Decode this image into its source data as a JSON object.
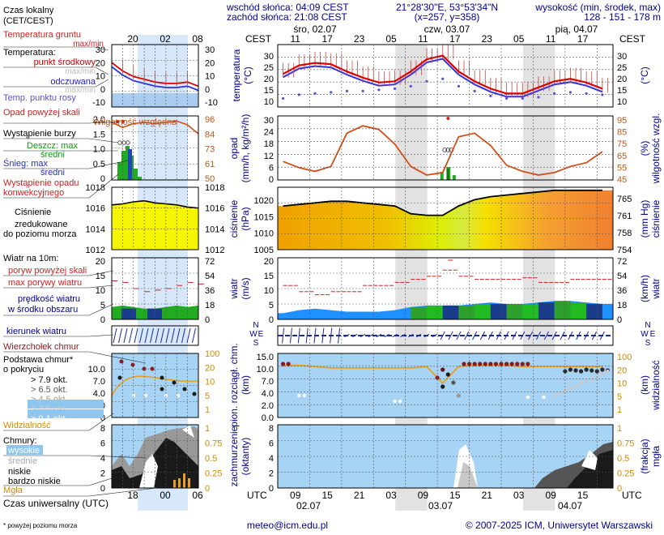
{
  "header": {
    "sunrise": "wschód słońca: 04:09 CEST",
    "sunset": "zachód słońca: 21:08 CEST",
    "coords": "21°28'30\"E, 53°53'34\"N",
    "grid": "(x=257, y=358)",
    "altitude_title": "wysokość (min, środek, max)",
    "altitude_values": "128 - 151 - 178 m",
    "tz": "CEST",
    "utc": "UTC",
    "days": [
      {
        "label": "śro, 02.07",
        "bottom": "02.07"
      },
      {
        "label": "czw, 03.07",
        "bottom": "03.07"
      },
      {
        "label": "pią, 04.07",
        "bottom": "04.07"
      }
    ],
    "hours_local": [
      "11",
      "17",
      "23",
      "05",
      "11",
      "17",
      "23",
      "05",
      "11",
      "17"
    ],
    "hours_utc": [
      "09",
      "15",
      "21",
      "03",
      "09",
      "15",
      "21",
      "03",
      "09",
      "15"
    ]
  },
  "legend": {
    "local_time": "Czas lokalny",
    "local_time_sub": "(CET/CEST)",
    "soil_temp": "Temperatura gruntu",
    "soil_temp_sub": "max/min",
    "temp": "Temperatura:",
    "temp_mid": "punkt środkowy",
    "temp_max_min": "max/min",
    "temp_felt": "odczuwana",
    "temp_felt_sub": "max/min",
    "dew_point": "Temp. punktu rosy",
    "precip_above": "Opad powyżej skali",
    "storm": "Wystąpienie burzy",
    "humidity": "Wilgotność względna",
    "rain": "Deszcz: max",
    "rain_mid": "średni",
    "snow": "Śnieg: max",
    "snow_mid": "średni",
    "conv": "Wystąpienie opadu",
    "conv2": "konwekcyjnego",
    "pressure": "Ciśnienie",
    "pressure2": "zredukowane",
    "pressure3": "do poziomu morza",
    "wind": "Wiatr na 10m:",
    "gust_above": "poryw powyżej skali",
    "gust_max": "max porywy wiatru",
    "wind_mean": "prędkość wiatru",
    "wind_mean2": "w środku obszaru",
    "wind_dir": "kierunek wiatru",
    "cloud_top": "Wierzchołek chmur",
    "cloud_base": "Podstawa chmur*",
    "cloud_base2": "o pokryciu",
    "okt": [
      "> 7.9 okt.",
      "> 6.5 okt.",
      "> 4.5 okt.",
      "> 2.5 okt.",
      "> 0.1 okt."
    ],
    "visibility": "Widzialność",
    "clouds": "Chmury:",
    "cl_high": "wysokie",
    "cl_mid": "średnie",
    "cl_low": "niskie",
    "cl_vlow": "bardzo niskie",
    "fog": "Mgła",
    "utc_label": "Czas uniwersalny (UTC)",
    "footnote": "* powyżej poziomu morza",
    "mini_top": [
      "20",
      "02",
      "08"
    ],
    "mini_bottom": [
      "18",
      "00",
      "06"
    ]
  },
  "footer": {
    "email": "meteo@icm.edu.pl",
    "copyright": "© 2007-2025 ICM, Uniwersytet Warszawski"
  },
  "panels": {
    "temp": {
      "left_label": "temperatura",
      "left_unit": "(°C)",
      "right_label": "(°C)",
      "ticks": [
        "30",
        "25",
        "20",
        "15",
        "10"
      ],
      "mini_ticks": [
        "30",
        "20",
        "10",
        "0",
        "-10"
      ]
    },
    "precip": {
      "left_label": "opad",
      "left_unit": "(mm/h, kg/m²/h)",
      "right_label": "wilgotność wzgl.",
      "right_unit": "(%)",
      "ticks_left": [
        "30",
        "24",
        "18",
        "12",
        "6",
        "0"
      ],
      "ticks_right": [
        "95",
        "85",
        "75",
        "65",
        "55",
        "45"
      ],
      "mini_left": [
        "2.0",
        "1.5",
        "1.0",
        "0.5",
        "0"
      ],
      "mini_right": [
        "96",
        "84",
        "73",
        "61",
        "50"
      ]
    },
    "pressure": {
      "left_label": "ciśnienie",
      "left_unit": "(hPa)",
      "right_label": "ciśnienie",
      "right_unit": "(mm Hg)",
      "ticks_left": [
        "1020",
        "1015",
        "1010",
        "1005"
      ],
      "ticks_right": [
        "765",
        "761",
        "758",
        "754"
      ],
      "mini_left": [
        "1018",
        "1016",
        "1014",
        "1012"
      ],
      "mini_right": [
        "1018",
        "1016",
        "1014",
        "1012"
      ]
    },
    "wind": {
      "left_label": "wiatr",
      "left_unit": "(m/s)",
      "right_label": "wiatr",
      "right_unit": "(km/h)",
      "ticks_left": [
        "20",
        "15",
        "10",
        "5",
        "0"
      ],
      "ticks_right": [
        "72",
        "54",
        "36",
        "18",
        "0"
      ],
      "mini_left": [
        "20",
        "15",
        "10",
        "5",
        "0"
      ],
      "mini_right": [
        "72",
        "54",
        "36",
        "18",
        "0"
      ]
    },
    "clouds": {
      "left_label": "pion. rozciągł. chm.",
      "left_unit": "(km)",
      "right_label": "widzialność",
      "right_unit": "(km)",
      "ticks_left": [
        "15.0",
        "10.0",
        "7.0",
        "4.0",
        "2.0",
        "0.0"
      ],
      "ticks_right": [
        "100",
        "20",
        "10",
        "5",
        "1"
      ],
      "mini_left": [
        "10.0",
        "7.0",
        "4.0",
        "2.0",
        "0"
      ],
      "mini_right": [
        "100",
        "20",
        "10",
        "5",
        "1"
      ]
    },
    "cover": {
      "left_label": "zachmurzenie",
      "left_unit": "(oktanty)",
      "right_label": "mgła",
      "right_unit": "(frakcja)",
      "ticks_left": [
        "8",
        "6",
        "4",
        "2",
        "0"
      ],
      "ticks_right": [
        "1",
        "0.75",
        "0.5",
        "0.25",
        "0"
      ],
      "mini_left": [
        "8",
        "6",
        "4",
        "2",
        "0"
      ],
      "mini_right": [
        "1",
        "0.75",
        "0.5",
        "0.25",
        "0"
      ]
    }
  },
  "chart_data": {
    "type": "line",
    "x_hours": [
      0,
      3,
      6,
      9,
      12,
      15,
      18,
      21,
      24,
      27,
      30,
      33,
      36,
      39,
      42,
      45,
      48,
      51,
      54,
      57,
      60
    ],
    "temperature_c": [
      21,
      24.5,
      25.5,
      25,
      22,
      19.5,
      17.5,
      18,
      22,
      27,
      28.5,
      22,
      18,
      15,
      13,
      13,
      15.5,
      18,
      19,
      17.5,
      15
    ],
    "dew_point_c": [
      11,
      12.5,
      13,
      13.5,
      14,
      14,
      14.5,
      15,
      16,
      18,
      19,
      16,
      14,
      12,
      11,
      11,
      11.5,
      13,
      13.5,
      13,
      12.5
    ],
    "humidity_pct": [
      60,
      55,
      52,
      56,
      83,
      89,
      86,
      74,
      56,
      49,
      51,
      80,
      83,
      73,
      57,
      52,
      49,
      51,
      56,
      59,
      68
    ],
    "precip_mm": [
      0,
      0,
      0,
      0,
      0,
      0,
      0,
      0,
      0,
      0,
      5,
      2,
      0,
      0,
      0,
      0,
      0,
      0,
      0,
      0,
      0
    ],
    "pressure_hpa": [
      1019,
      1019.5,
      1020,
      1020.5,
      1020.5,
      1020,
      1019.5,
      1019,
      1016.5,
      1016,
      1016,
      1019,
      1021,
      1022,
      1022.5,
      1023,
      1023.5,
      1024,
      1024,
      1024,
      1024
    ],
    "wind_ms": [
      2,
      3,
      3.5,
      3,
      2.5,
      2.5,
      2.5,
      3,
      4,
      4.5,
      4.5,
      4.5,
      5,
      5.5,
      5,
      5,
      5.5,
      6,
      6,
      5.5,
      5
    ],
    "gust_ms": [
      11,
      9,
      8,
      9,
      9,
      11,
      11,
      12,
      13,
      14,
      16,
      14,
      13,
      13,
      13,
      13.5,
      12,
      12,
      13,
      13,
      13
    ],
    "visibility_km": [
      50,
      50,
      45,
      40,
      40,
      40,
      40,
      40,
      40,
      45,
      12,
      45,
      50,
      50,
      50,
      45,
      45,
      45,
      45,
      45,
      45
    ],
    "mini_temperature_c": [
      20,
      14,
      10,
      8,
      6,
      5,
      5,
      6,
      3
    ],
    "mini_pressure_hpa": [
      1016.3,
      1016.4,
      1016.6,
      1016.7,
      1016.5,
      1016.4,
      1016.3,
      1016.1,
      1016
    ],
    "mini_humidity_pct": [
      95,
      91,
      94,
      95,
      94,
      95,
      96,
      93,
      86
    ],
    "mini_wind_ms": [
      4,
      4.5,
      4,
      3.5,
      3.5,
      4,
      4.5,
      4,
      4.5
    ],
    "mini_gust_ms": [
      12.5,
      12,
      10,
      9,
      9.5,
      10,
      11,
      12,
      11.5
    ]
  }
}
